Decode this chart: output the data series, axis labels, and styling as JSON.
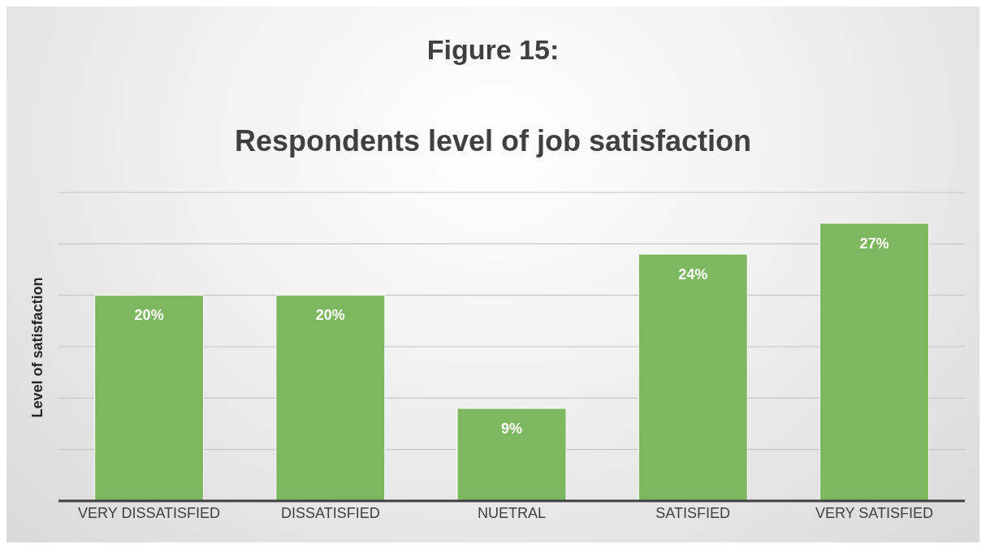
{
  "chart_data": {
    "type": "bar",
    "title": "Figure 15:",
    "subtitle": "Respondents level of job satisfaction",
    "ylabel": "Level of satisfaction",
    "categories": [
      "VERY DISSATISFIED",
      "DISSATISFIED",
      "NUETRAL",
      "SATISFIED",
      "VERY SATISFIED"
    ],
    "values": [
      20,
      20,
      9,
      24,
      27
    ],
    "value_labels": [
      "20%",
      "20%",
      "9%",
      "24%",
      "27%"
    ],
    "color": "#7db760",
    "ylim": [
      0,
      30
    ],
    "yticks": [
      {
        "value": 0,
        "label": null
      },
      {
        "value": 5,
        "label": null
      },
      {
        "value": 10,
        "label": null
      },
      {
        "value": 15,
        "label": null
      },
      {
        "value": 20,
        "label": null
      },
      {
        "value": 25,
        "label": null
      },
      {
        "value": 30,
        "label": null
      }
    ],
    "grid": "y",
    "tick_labels": "x"
  }
}
